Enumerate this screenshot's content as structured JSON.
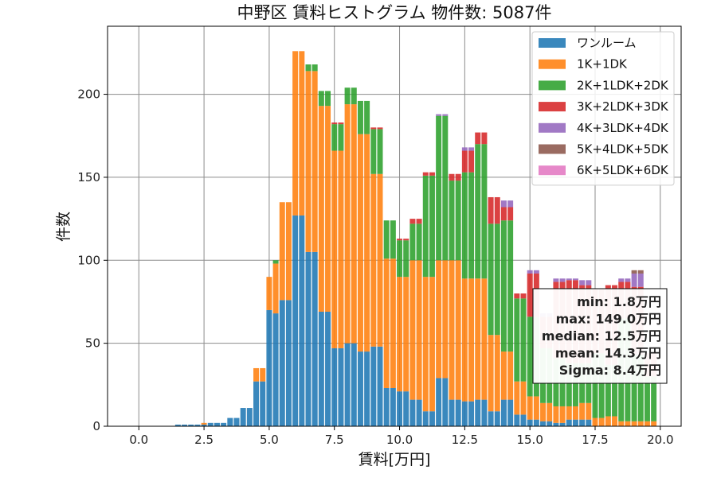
{
  "chart_data": {
    "type": "bar",
    "stacked": true,
    "title": "中野区 賃料ヒストグラム 物件数: 5087件",
    "xlabel": "賃料[万円]",
    "ylabel": "件数",
    "xlim": [
      -1.2,
      20.8
    ],
    "ylim": [
      0,
      241
    ],
    "xticks": [
      0.0,
      2.5,
      5.0,
      7.5,
      10.0,
      12.5,
      15.0,
      17.5,
      20.0
    ],
    "xtick_labels": [
      "0.0",
      "2.5",
      "5.0",
      "7.5",
      "10.0",
      "12.5",
      "15.0",
      "17.5",
      "20.0"
    ],
    "yticks": [
      0,
      50,
      100,
      150,
      200
    ],
    "ytick_labels": [
      "0",
      "50",
      "100",
      "150",
      "200"
    ],
    "grid": true,
    "legend_position": "top-right",
    "bin_width": 0.25,
    "x": [
      1.5,
      1.75,
      2.0,
      2.25,
      2.5,
      2.75,
      3.0,
      3.25,
      3.5,
      3.75,
      4.0,
      4.25,
      4.5,
      4.75,
      5.0,
      5.25,
      5.5,
      5.75,
      6.0,
      6.25,
      6.5,
      6.75,
      7.0,
      7.25,
      7.5,
      7.75,
      8.0,
      8.25,
      8.5,
      8.75,
      9.0,
      9.25,
      9.5,
      9.75,
      10.0,
      10.25,
      10.5,
      10.75,
      11.0,
      11.25,
      11.5,
      11.75,
      12.0,
      12.25,
      12.5,
      12.75,
      13.0,
      13.25,
      13.5,
      13.75,
      14.0,
      14.25,
      14.5,
      14.75,
      15.0,
      15.25,
      15.5,
      15.75,
      16.0,
      16.25,
      16.5,
      16.75,
      17.0,
      17.25,
      17.5,
      17.75,
      18.0,
      18.25,
      18.5,
      18.75,
      19.0,
      19.25,
      19.5,
      19.75
    ],
    "series": [
      {
        "name": "ワンルーム",
        "color": "#1f77b4",
        "values": [
          1,
          1,
          1,
          1,
          1,
          2,
          2,
          2,
          5,
          5,
          11,
          11,
          27,
          27,
          70,
          68,
          76,
          76,
          127,
          127,
          105,
          105,
          69,
          69,
          47,
          47,
          50,
          50,
          45,
          45,
          48,
          48,
          23,
          23,
          21,
          21,
          16,
          16,
          9,
          9,
          29,
          29,
          16,
          16,
          15,
          15,
          16,
          16,
          9,
          9,
          16,
          16,
          7,
          7,
          4,
          4,
          3,
          3,
          2,
          2,
          4,
          4,
          4,
          4,
          0,
          0,
          0,
          0,
          0,
          0,
          0,
          0,
          0,
          0
        ]
      },
      {
        "name": "1K+1DK",
        "color": "#ff7f0e",
        "values": [
          0,
          0,
          0,
          0,
          1,
          0,
          0,
          0,
          0,
          0,
          0,
          0,
          8,
          8,
          20,
          30,
          59,
          59,
          99,
          99,
          109,
          109,
          124,
          124,
          119,
          119,
          144,
          144,
          131,
          131,
          104,
          104,
          78,
          78,
          69,
          69,
          84,
          84,
          81,
          81,
          71,
          71,
          84,
          84,
          74,
          74,
          73,
          73,
          46,
          46,
          29,
          29,
          20,
          20,
          14,
          14,
          11,
          11,
          10,
          10,
          8,
          8,
          10,
          10,
          5,
          5,
          6,
          6,
          3,
          3,
          3,
          3,
          3,
          3
        ]
      },
      {
        "name": "2K+1LDK+2DK",
        "color": "#2ca02c",
        "values": [
          0,
          0,
          0,
          0,
          0,
          0,
          0,
          0,
          0,
          0,
          0,
          0,
          0,
          0,
          0,
          2,
          0,
          0,
          0,
          0,
          4,
          4,
          9,
          9,
          16,
          16,
          10,
          10,
          20,
          20,
          27,
          27,
          23,
          23,
          22,
          22,
          22,
          22,
          61,
          61,
          87,
          87,
          48,
          48,
          64,
          64,
          81,
          81,
          67,
          67,
          79,
          79,
          50,
          50,
          48,
          48,
          33,
          33,
          29,
          29,
          26,
          26,
          24,
          24,
          39,
          39,
          31,
          31,
          62,
          62,
          40,
          40,
          27,
          27
        ]
      },
      {
        "name": "3K+2LDK+3DK",
        "color": "#d62728",
        "values": [
          0,
          0,
          0,
          0,
          0,
          0,
          0,
          0,
          0,
          0,
          0,
          0,
          0,
          0,
          0,
          0,
          0,
          0,
          0,
          0,
          0,
          0,
          0,
          0,
          1,
          1,
          0,
          0,
          0,
          0,
          1,
          1,
          0,
          0,
          1,
          1,
          3,
          3,
          2,
          2,
          0,
          0,
          4,
          4,
          13,
          13,
          7,
          7,
          16,
          16,
          8,
          8,
          3,
          3,
          26,
          26,
          19,
          19,
          46,
          46,
          50,
          50,
          47,
          47,
          39,
          39,
          48,
          48,
          22,
          22,
          41,
          41,
          14,
          14
        ]
      },
      {
        "name": "4K+3LDK+4DK",
        "color": "#9467bd",
        "values": [
          0,
          0,
          0,
          0,
          0,
          0,
          0,
          0,
          0,
          0,
          0,
          0,
          0,
          0,
          0,
          0,
          0,
          0,
          0,
          0,
          0,
          0,
          0,
          0,
          0,
          0,
          0,
          0,
          0,
          0,
          0,
          0,
          0,
          0,
          0,
          0,
          0,
          0,
          0,
          0,
          1,
          1,
          0,
          0,
          2,
          2,
          0,
          0,
          0,
          0,
          4,
          4,
          0,
          0,
          2,
          2,
          2,
          2,
          2,
          2,
          1,
          1,
          3,
          3,
          0,
          0,
          0,
          0,
          2,
          2,
          8,
          8,
          0,
          0
        ]
      },
      {
        "name": "5K+4LDK+5DK",
        "color": "#8c564b",
        "values": [
          0,
          0,
          0,
          0,
          0,
          0,
          0,
          0,
          0,
          0,
          0,
          0,
          0,
          0,
          0,
          0,
          0,
          0,
          0,
          0,
          0,
          0,
          0,
          0,
          0,
          0,
          0,
          0,
          0,
          0,
          0,
          0,
          0,
          0,
          0,
          0,
          0,
          0,
          0,
          0,
          0,
          0,
          0,
          0,
          0,
          0,
          0,
          0,
          0,
          0,
          0,
          0,
          0,
          0,
          0,
          0,
          0,
          0,
          0,
          0,
          0,
          0,
          0,
          0,
          0,
          0,
          0,
          0,
          0,
          0,
          2,
          2,
          0,
          0
        ]
      },
      {
        "name": "6K+5LDK+6DK",
        "color": "#e377c2",
        "values": [
          0,
          0,
          0,
          0,
          0,
          0,
          0,
          0,
          0,
          0,
          0,
          0,
          0,
          0,
          0,
          0,
          0,
          0,
          0,
          0,
          0,
          0,
          0,
          0,
          0,
          0,
          0,
          0,
          0,
          0,
          0,
          0,
          0,
          0,
          0,
          0,
          0,
          0,
          0,
          0,
          0,
          0,
          0,
          0,
          0,
          0,
          0,
          0,
          0,
          0,
          0,
          0,
          0,
          0,
          0,
          0,
          0,
          0,
          0,
          0,
          0,
          0,
          0,
          0,
          0,
          0,
          0,
          0,
          0,
          0,
          0,
          0,
          0,
          0
        ]
      }
    ],
    "annotations": [
      "min: 1.8万円",
      "max: 149.0万円",
      "median: 12.5万円",
      "mean: 14.3万円",
      "Sigma: 8.4万円"
    ]
  }
}
